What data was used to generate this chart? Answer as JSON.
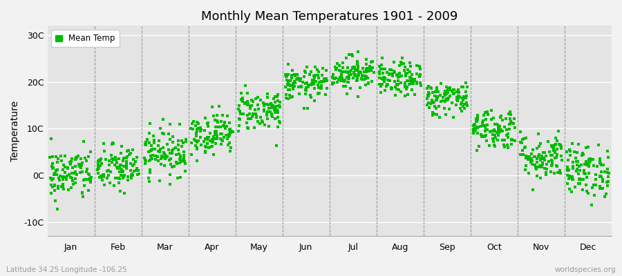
{
  "title": "Monthly Mean Temperatures 1901 - 2009",
  "ylabel": "Temperature",
  "xlabel_bottom": "Latitude 34.25 Longitude -106.25",
  "watermark": "worldspecies.org",
  "legend_label": "Mean Temp",
  "ytick_labels": [
    "-10C",
    "0C",
    "10C",
    "20C",
    "30C"
  ],
  "ytick_values": [
    -10,
    0,
    10,
    20,
    30
  ],
  "ylim": [
    -13,
    32
  ],
  "month_labels": [
    "Jan",
    "Feb",
    "Mar",
    "Apr",
    "May",
    "Jun",
    "Jul",
    "Aug",
    "Sep",
    "Oct",
    "Nov",
    "Dec"
  ],
  "marker_color": "#00bb00",
  "fig_background_color": "#f2f2f2",
  "plot_background_color": "#e4e4e4",
  "grid_color": "#ffffff",
  "vline_color": "#999999",
  "n_years": 109,
  "monthly_means": [
    0.2,
    1.5,
    5.0,
    9.0,
    14.0,
    19.5,
    22.0,
    20.5,
    16.5,
    10.0,
    4.0,
    1.0
  ],
  "monthly_stds": [
    2.8,
    2.5,
    2.5,
    2.2,
    2.2,
    1.8,
    1.8,
    1.8,
    1.8,
    2.2,
    2.5,
    2.8
  ],
  "seed": 42
}
